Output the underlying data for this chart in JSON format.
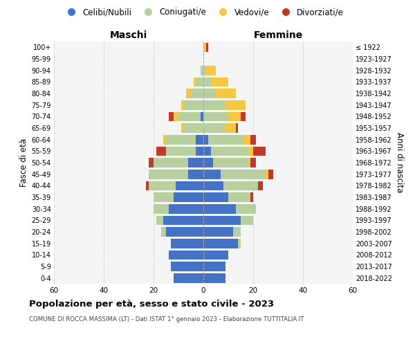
{
  "age_groups": [
    "0-4",
    "5-9",
    "10-14",
    "15-19",
    "20-24",
    "25-29",
    "30-34",
    "35-39",
    "40-44",
    "45-49",
    "50-54",
    "55-59",
    "60-64",
    "65-69",
    "70-74",
    "75-79",
    "80-84",
    "85-89",
    "90-94",
    "95-99",
    "100+"
  ],
  "birth_years": [
    "2018-2022",
    "2013-2017",
    "2008-2012",
    "2003-2007",
    "1998-2002",
    "1993-1997",
    "1988-1992",
    "1983-1987",
    "1978-1982",
    "1973-1977",
    "1968-1972",
    "1963-1967",
    "1958-1962",
    "1953-1957",
    "1948-1952",
    "1943-1947",
    "1938-1942",
    "1933-1937",
    "1928-1932",
    "1923-1927",
    "≤ 1922"
  ],
  "maschi": {
    "celibi": [
      12,
      13,
      14,
      13,
      15,
      16,
      14,
      12,
      11,
      6,
      6,
      3,
      3,
      0,
      1,
      0,
      0,
      0,
      0,
      0,
      0
    ],
    "coniugati": [
      0,
      0,
      0,
      0,
      2,
      3,
      6,
      8,
      11,
      16,
      14,
      12,
      12,
      8,
      9,
      8,
      5,
      3,
      1,
      0,
      0
    ],
    "vedovi": [
      0,
      0,
      0,
      0,
      0,
      0,
      0,
      0,
      0,
      0,
      0,
      0,
      1,
      1,
      2,
      1,
      2,
      1,
      0,
      0,
      0
    ],
    "divorziati": [
      0,
      0,
      0,
      0,
      0,
      0,
      0,
      0,
      1,
      0,
      2,
      4,
      0,
      0,
      2,
      0,
      0,
      0,
      0,
      0,
      0
    ]
  },
  "femmine": {
    "nubili": [
      9,
      9,
      10,
      14,
      12,
      15,
      13,
      10,
      8,
      7,
      4,
      3,
      2,
      0,
      0,
      0,
      0,
      0,
      0,
      0,
      0
    ],
    "coniugate": [
      0,
      0,
      0,
      1,
      3,
      5,
      8,
      9,
      14,
      18,
      14,
      15,
      14,
      9,
      10,
      9,
      5,
      3,
      1,
      0,
      0
    ],
    "vedove": [
      0,
      0,
      0,
      0,
      0,
      0,
      0,
      0,
      0,
      1,
      1,
      2,
      3,
      4,
      5,
      8,
      8,
      7,
      4,
      0,
      1
    ],
    "divorziate": [
      0,
      0,
      0,
      0,
      0,
      0,
      0,
      1,
      2,
      2,
      2,
      5,
      2,
      1,
      2,
      0,
      0,
      0,
      0,
      0,
      1
    ]
  },
  "colors": {
    "celibi": "#4472c4",
    "coniugati": "#b8cfa0",
    "vedovi": "#f5c842",
    "divorziati": "#c0392b"
  },
  "xlim": 60,
  "title": "Popolazione per età, sesso e stato civile - 2023",
  "subtitle": "COMUNE DI ROCCA MASSIMA (LT) - Dati ISTAT 1° gennaio 2023 - Elaborazione TUTTITALIA.IT",
  "header_left": "Maschi",
  "header_right": "Femmine",
  "ylabel": "Fasce di età",
  "ylabel_right": "Anni di nascita",
  "background_color": "#ffffff",
  "plot_bg": "#f5f5f5",
  "legend_labels": [
    "Celibi/Nubili",
    "Coniugati/e",
    "Vedovi/e",
    "Divorziati/e"
  ]
}
